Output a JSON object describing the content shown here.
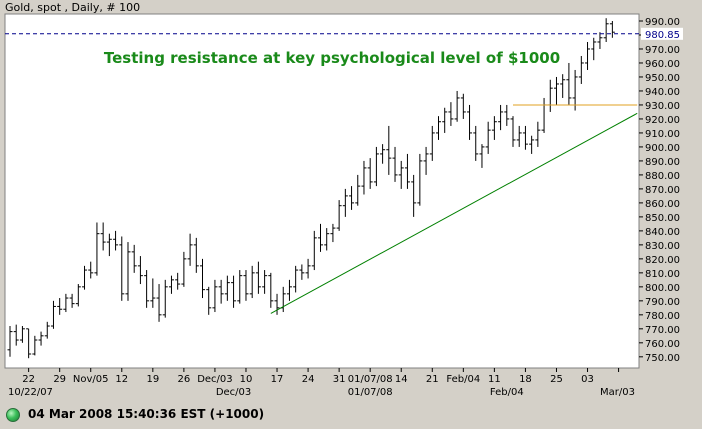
{
  "header": {
    "title": "Gold, spot , Daily, # 100"
  },
  "status": {
    "timestamp": "04 Mar 2008 15:40:36 EST (+1000)",
    "indicator_color": "#3bbf5a"
  },
  "chart_data": {
    "type": "bar",
    "style": "ohlc",
    "title": "Gold, spot , Daily, # 100",
    "annotations": [
      {
        "text": "Testing resistance at key psychological level of $1000",
        "color": "#1a8a1a"
      }
    ],
    "y_axis": {
      "side": "right",
      "ylim": [
        742,
        995
      ],
      "ticks": [
        750,
        760,
        770,
        780,
        790,
        800,
        810,
        820,
        830,
        840,
        850,
        860,
        870,
        880,
        890,
        900,
        910,
        920,
        930,
        940,
        950,
        960,
        970,
        980,
        990
      ],
      "tick_labels": [
        "750.00",
        "760.00",
        "770.00",
        "780.00",
        "790.00",
        "800.00",
        "810.00",
        "820.00",
        "830.00",
        "840.00",
        "850.00",
        "860.00",
        "870.00",
        "880.00",
        "890.00",
        "900.00",
        "910.00",
        "920.00",
        "930.00",
        "940.00",
        "950.00",
        "960.00",
        "970.00",
        "980.00",
        "990.00"
      ]
    },
    "x_axis": {
      "tick_index": [
        3,
        8,
        13,
        18,
        23,
        28,
        33,
        38,
        43,
        48,
        53,
        58,
        63,
        68,
        73,
        78,
        83,
        88,
        93,
        98
      ],
      "tick_labels": [
        "22",
        "29",
        "Nov/05",
        "12",
        "19",
        "26",
        "Dec/03",
        "10",
        "17",
        "24",
        "31",
        "01/07/08",
        "14",
        "21",
        "Feb/04",
        "11",
        "18",
        "25",
        "03",
        ""
      ],
      "secondary_labels": [
        {
          "index": 0,
          "text": "10/22/07"
        },
        {
          "index": 36,
          "text": "Dec/03"
        },
        {
          "index": 58,
          "text": "01/07/08"
        },
        {
          "index": 80,
          "text": "Feb/04"
        },
        {
          "index": 99,
          "text": "Mar/03"
        }
      ]
    },
    "current_price": {
      "value": 980.85,
      "label": "980.85",
      "color": "#00008b"
    },
    "lines": [
      {
        "name": "uptrend-line",
        "color": "#008000",
        "from": {
          "index": 42,
          "value": 781
        },
        "to": {
          "index": 101,
          "value": 924
        }
      },
      {
        "name": "resistance-line",
        "color": "#e0a020",
        "from": {
          "index": 81,
          "value": 930
        },
        "to": {
          "index": 101,
          "value": 930
        }
      }
    ],
    "ohlc": [
      [
        755,
        772,
        750,
        768
      ],
      [
        768,
        773,
        758,
        762
      ],
      [
        762,
        772,
        760,
        770
      ],
      [
        770,
        770,
        749,
        752
      ],
      [
        752,
        765,
        751,
        762
      ],
      [
        762,
        768,
        758,
        765
      ],
      [
        765,
        775,
        763,
        772
      ],
      [
        772,
        790,
        770,
        786
      ],
      [
        786,
        792,
        780,
        784
      ],
      [
        784,
        795,
        782,
        792
      ],
      [
        792,
        795,
        785,
        788
      ],
      [
        788,
        802,
        786,
        800
      ],
      [
        800,
        815,
        798,
        812
      ],
      [
        812,
        818,
        806,
        810
      ],
      [
        810,
        846,
        808,
        838
      ],
      [
        838,
        846,
        826,
        832
      ],
      [
        832,
        838,
        822,
        834
      ],
      [
        834,
        840,
        826,
        830
      ],
      [
        830,
        836,
        790,
        795
      ],
      [
        795,
        832,
        790,
        825
      ],
      [
        825,
        830,
        810,
        815
      ],
      [
        815,
        822,
        802,
        808
      ],
      [
        808,
        812,
        785,
        790
      ],
      [
        790,
        806,
        785,
        792
      ],
      [
        792,
        802,
        775,
        780
      ],
      [
        780,
        805,
        778,
        800
      ],
      [
        800,
        808,
        795,
        805
      ],
      [
        805,
        810,
        798,
        802
      ],
      [
        802,
        825,
        800,
        820
      ],
      [
        820,
        838,
        815,
        830
      ],
      [
        830,
        835,
        810,
        815
      ],
      [
        815,
        820,
        792,
        798
      ],
      [
        798,
        800,
        780,
        785
      ],
      [
        785,
        805,
        782,
        800
      ],
      [
        800,
        805,
        788,
        795
      ],
      [
        795,
        808,
        790,
        803
      ],
      [
        803,
        808,
        785,
        790
      ],
      [
        790,
        812,
        788,
        808
      ],
      [
        808,
        812,
        790,
        795
      ],
      [
        795,
        815,
        792,
        810
      ],
      [
        810,
        818,
        795,
        800
      ],
      [
        800,
        812,
        795,
        808
      ],
      [
        808,
        810,
        785,
        790
      ],
      [
        790,
        795,
        780,
        785
      ],
      [
        785,
        800,
        782,
        795
      ],
      [
        795,
        805,
        790,
        800
      ],
      [
        800,
        815,
        796,
        812
      ],
      [
        812,
        816,
        805,
        810
      ],
      [
        810,
        820,
        806,
        815
      ],
      [
        815,
        840,
        812,
        835
      ],
      [
        835,
        845,
        825,
        830
      ],
      [
        830,
        842,
        826,
        838
      ],
      [
        838,
        845,
        832,
        842
      ],
      [
        842,
        862,
        840,
        858
      ],
      [
        858,
        870,
        850,
        865
      ],
      [
        865,
        872,
        855,
        860
      ],
      [
        860,
        880,
        858,
        872
      ],
      [
        872,
        890,
        866,
        885
      ],
      [
        885,
        892,
        870,
        875
      ],
      [
        875,
        900,
        872,
        895
      ],
      [
        895,
        902,
        888,
        898
      ],
      [
        898,
        915,
        880,
        892
      ],
      [
        892,
        900,
        875,
        880
      ],
      [
        880,
        890,
        870,
        885
      ],
      [
        885,
        895,
        870,
        875
      ],
      [
        875,
        880,
        850,
        860
      ],
      [
        860,
        895,
        858,
        890
      ],
      [
        890,
        900,
        880,
        895
      ],
      [
        895,
        915,
        890,
        910
      ],
      [
        910,
        922,
        905,
        918
      ],
      [
        918,
        928,
        910,
        925
      ],
      [
        925,
        932,
        915,
        920
      ],
      [
        920,
        940,
        918,
        935
      ],
      [
        935,
        938,
        920,
        925
      ],
      [
        925,
        930,
        905,
        910
      ],
      [
        910,
        915,
        890,
        895
      ],
      [
        895,
        902,
        885,
        900
      ],
      [
        900,
        918,
        895,
        912
      ],
      [
        912,
        922,
        905,
        918
      ],
      [
        918,
        930,
        912,
        925
      ],
      [
        925,
        930,
        915,
        920
      ],
      [
        920,
        922,
        900,
        905
      ],
      [
        905,
        915,
        900,
        910
      ],
      [
        910,
        915,
        898,
        902
      ],
      [
        902,
        908,
        895,
        905
      ],
      [
        905,
        918,
        900,
        912
      ],
      [
        912,
        935,
        910,
        930
      ],
      [
        930,
        948,
        925,
        942
      ],
      [
        942,
        950,
        930,
        945
      ],
      [
        945,
        952,
        935,
        948
      ],
      [
        948,
        960,
        930,
        935
      ],
      [
        935,
        955,
        926,
        950
      ],
      [
        950,
        965,
        945,
        960
      ],
      [
        960,
        975,
        955,
        970
      ],
      [
        970,
        978,
        962,
        975
      ],
      [
        975,
        982,
        970,
        978
      ],
      [
        978,
        992,
        975,
        988
      ],
      [
        988,
        990,
        978,
        982
      ]
    ]
  }
}
